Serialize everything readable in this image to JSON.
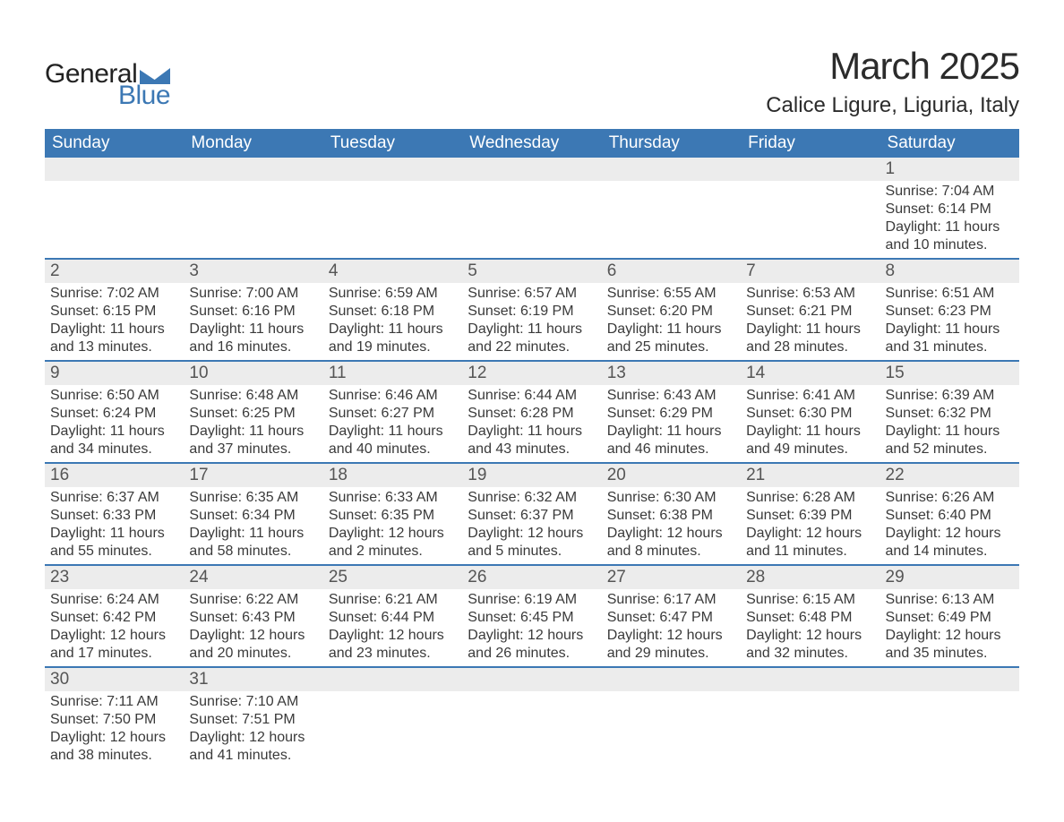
{
  "brand": {
    "part1": "General",
    "part2": "Blue",
    "wedge_color": "#3c78b4"
  },
  "title": "March 2025",
  "location": "Calice Ligure, Liguria, Italy",
  "colors": {
    "header_bg": "#3c78b4",
    "header_fg": "#ffffff",
    "row_stripe": "#ececec",
    "divider": "#3c78b4",
    "text": "#3a3a3a",
    "background": "#ffffff"
  },
  "typography": {
    "title_fontsize": 42,
    "location_fontsize": 24,
    "dayheader_fontsize": 19,
    "daynum_fontsize": 19,
    "body_fontsize": 16
  },
  "day_headers": [
    "Sunday",
    "Monday",
    "Tuesday",
    "Wednesday",
    "Thursday",
    "Friday",
    "Saturday"
  ],
  "weeks": [
    [
      null,
      null,
      null,
      null,
      null,
      null,
      {
        "day": "1",
        "sunrise": "7:04 AM",
        "sunset": "6:14 PM",
        "daylight": "11 hours and 10 minutes."
      }
    ],
    [
      {
        "day": "2",
        "sunrise": "7:02 AM",
        "sunset": "6:15 PM",
        "daylight": "11 hours and 13 minutes."
      },
      {
        "day": "3",
        "sunrise": "7:00 AM",
        "sunset": "6:16 PM",
        "daylight": "11 hours and 16 minutes."
      },
      {
        "day": "4",
        "sunrise": "6:59 AM",
        "sunset": "6:18 PM",
        "daylight": "11 hours and 19 minutes."
      },
      {
        "day": "5",
        "sunrise": "6:57 AM",
        "sunset": "6:19 PM",
        "daylight": "11 hours and 22 minutes."
      },
      {
        "day": "6",
        "sunrise": "6:55 AM",
        "sunset": "6:20 PM",
        "daylight": "11 hours and 25 minutes."
      },
      {
        "day": "7",
        "sunrise": "6:53 AM",
        "sunset": "6:21 PM",
        "daylight": "11 hours and 28 minutes."
      },
      {
        "day": "8",
        "sunrise": "6:51 AM",
        "sunset": "6:23 PM",
        "daylight": "11 hours and 31 minutes."
      }
    ],
    [
      {
        "day": "9",
        "sunrise": "6:50 AM",
        "sunset": "6:24 PM",
        "daylight": "11 hours and 34 minutes."
      },
      {
        "day": "10",
        "sunrise": "6:48 AM",
        "sunset": "6:25 PM",
        "daylight": "11 hours and 37 minutes."
      },
      {
        "day": "11",
        "sunrise": "6:46 AM",
        "sunset": "6:27 PM",
        "daylight": "11 hours and 40 minutes."
      },
      {
        "day": "12",
        "sunrise": "6:44 AM",
        "sunset": "6:28 PM",
        "daylight": "11 hours and 43 minutes."
      },
      {
        "day": "13",
        "sunrise": "6:43 AM",
        "sunset": "6:29 PM",
        "daylight": "11 hours and 46 minutes."
      },
      {
        "day": "14",
        "sunrise": "6:41 AM",
        "sunset": "6:30 PM",
        "daylight": "11 hours and 49 minutes."
      },
      {
        "day": "15",
        "sunrise": "6:39 AM",
        "sunset": "6:32 PM",
        "daylight": "11 hours and 52 minutes."
      }
    ],
    [
      {
        "day": "16",
        "sunrise": "6:37 AM",
        "sunset": "6:33 PM",
        "daylight": "11 hours and 55 minutes."
      },
      {
        "day": "17",
        "sunrise": "6:35 AM",
        "sunset": "6:34 PM",
        "daylight": "11 hours and 58 minutes."
      },
      {
        "day": "18",
        "sunrise": "6:33 AM",
        "sunset": "6:35 PM",
        "daylight": "12 hours and 2 minutes."
      },
      {
        "day": "19",
        "sunrise": "6:32 AM",
        "sunset": "6:37 PM",
        "daylight": "12 hours and 5 minutes."
      },
      {
        "day": "20",
        "sunrise": "6:30 AM",
        "sunset": "6:38 PM",
        "daylight": "12 hours and 8 minutes."
      },
      {
        "day": "21",
        "sunrise": "6:28 AM",
        "sunset": "6:39 PM",
        "daylight": "12 hours and 11 minutes."
      },
      {
        "day": "22",
        "sunrise": "6:26 AM",
        "sunset": "6:40 PM",
        "daylight": "12 hours and 14 minutes."
      }
    ],
    [
      {
        "day": "23",
        "sunrise": "6:24 AM",
        "sunset": "6:42 PM",
        "daylight": "12 hours and 17 minutes."
      },
      {
        "day": "24",
        "sunrise": "6:22 AM",
        "sunset": "6:43 PM",
        "daylight": "12 hours and 20 minutes."
      },
      {
        "day": "25",
        "sunrise": "6:21 AM",
        "sunset": "6:44 PM",
        "daylight": "12 hours and 23 minutes."
      },
      {
        "day": "26",
        "sunrise": "6:19 AM",
        "sunset": "6:45 PM",
        "daylight": "12 hours and 26 minutes."
      },
      {
        "day": "27",
        "sunrise": "6:17 AM",
        "sunset": "6:47 PM",
        "daylight": "12 hours and 29 minutes."
      },
      {
        "day": "28",
        "sunrise": "6:15 AM",
        "sunset": "6:48 PM",
        "daylight": "12 hours and 32 minutes."
      },
      {
        "day": "29",
        "sunrise": "6:13 AM",
        "sunset": "6:49 PM",
        "daylight": "12 hours and 35 minutes."
      }
    ],
    [
      {
        "day": "30",
        "sunrise": "7:11 AM",
        "sunset": "7:50 PM",
        "daylight": "12 hours and 38 minutes."
      },
      {
        "day": "31",
        "sunrise": "7:10 AM",
        "sunset": "7:51 PM",
        "daylight": "12 hours and 41 minutes."
      },
      null,
      null,
      null,
      null,
      null
    ]
  ],
  "labels": {
    "sunrise": "Sunrise: ",
    "sunset": "Sunset: ",
    "daylight": "Daylight: "
  }
}
